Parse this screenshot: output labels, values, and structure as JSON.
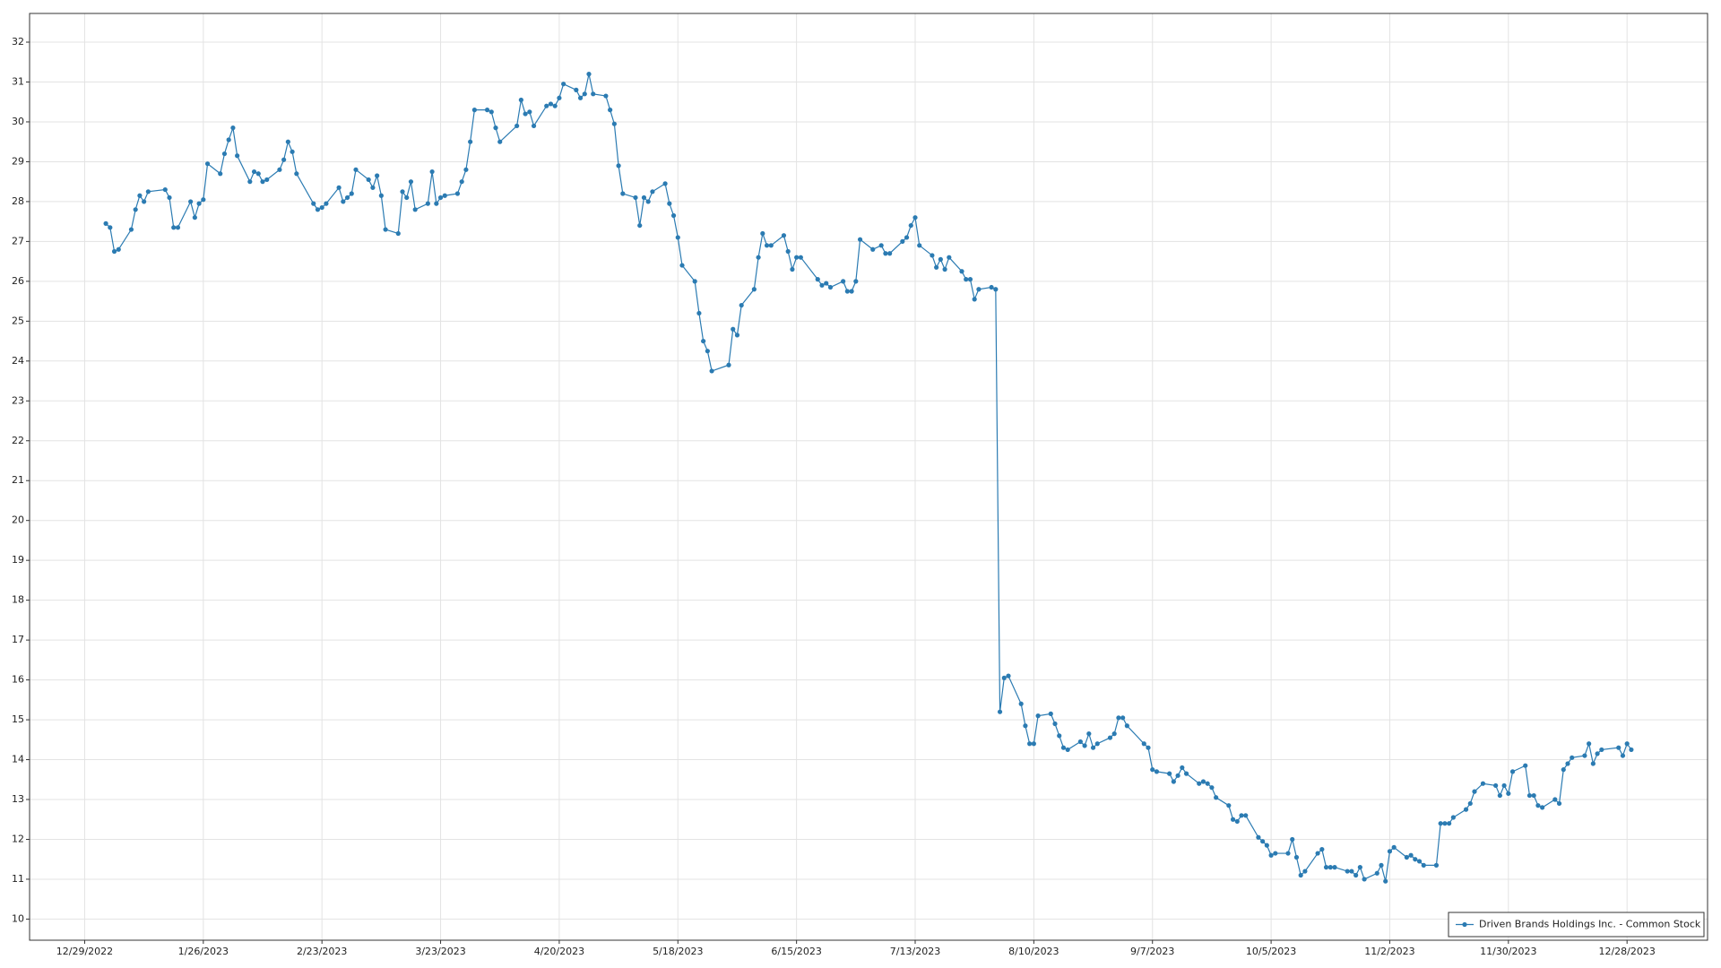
{
  "chart_data": {
    "type": "line",
    "x": [
      "2023-01-03",
      "2023-01-04",
      "2023-01-05",
      "2023-01-06",
      "2023-01-09",
      "2023-01-10",
      "2023-01-11",
      "2023-01-12",
      "2023-01-13",
      "2023-01-17",
      "2023-01-18",
      "2023-01-19",
      "2023-01-20",
      "2023-01-23",
      "2023-01-24",
      "2023-01-25",
      "2023-01-26",
      "2023-01-27",
      "2023-01-30",
      "2023-01-31",
      "2023-02-01",
      "2023-02-02",
      "2023-02-03",
      "2023-02-06",
      "2023-02-07",
      "2023-02-08",
      "2023-02-09",
      "2023-02-10",
      "2023-02-13",
      "2023-02-14",
      "2023-02-15",
      "2023-02-16",
      "2023-02-17",
      "2023-02-21",
      "2023-02-22",
      "2023-02-23",
      "2023-02-24",
      "2023-02-27",
      "2023-02-28",
      "2023-03-01",
      "2023-03-02",
      "2023-03-03",
      "2023-03-06",
      "2023-03-07",
      "2023-03-08",
      "2023-03-09",
      "2023-03-10",
      "2023-03-13",
      "2023-03-14",
      "2023-03-15",
      "2023-03-16",
      "2023-03-17",
      "2023-03-20",
      "2023-03-21",
      "2023-03-22",
      "2023-03-23",
      "2023-03-24",
      "2023-03-27",
      "2023-03-28",
      "2023-03-29",
      "2023-03-30",
      "2023-03-31",
      "2023-04-03",
      "2023-04-04",
      "2023-04-05",
      "2023-04-06",
      "2023-04-10",
      "2023-04-11",
      "2023-04-12",
      "2023-04-13",
      "2023-04-14",
      "2023-04-17",
      "2023-04-18",
      "2023-04-19",
      "2023-04-20",
      "2023-04-21",
      "2023-04-24",
      "2023-04-25",
      "2023-04-26",
      "2023-04-27",
      "2023-04-28",
      "2023-05-01",
      "2023-05-02",
      "2023-05-03",
      "2023-05-04",
      "2023-05-05",
      "2023-05-08",
      "2023-05-09",
      "2023-05-10",
      "2023-05-11",
      "2023-05-12",
      "2023-05-15",
      "2023-05-16",
      "2023-05-17",
      "2023-05-18",
      "2023-05-19",
      "2023-05-22",
      "2023-05-23",
      "2023-05-24",
      "2023-05-25",
      "2023-05-26",
      "2023-05-30",
      "2023-05-31",
      "2023-06-01",
      "2023-06-02",
      "2023-06-05",
      "2023-06-06",
      "2023-06-07",
      "2023-06-08",
      "2023-06-09",
      "2023-06-12",
      "2023-06-13",
      "2023-06-14",
      "2023-06-15",
      "2023-06-16",
      "2023-06-20",
      "2023-06-21",
      "2023-06-22",
      "2023-06-23",
      "2023-06-26",
      "2023-06-27",
      "2023-06-28",
      "2023-06-29",
      "2023-06-30",
      "2023-07-03",
      "2023-07-05",
      "2023-07-06",
      "2023-07-07",
      "2023-07-10",
      "2023-07-11",
      "2023-07-12",
      "2023-07-13",
      "2023-07-14",
      "2023-07-17",
      "2023-07-18",
      "2023-07-19",
      "2023-07-20",
      "2023-07-21",
      "2023-07-24",
      "2023-07-25",
      "2023-07-26",
      "2023-07-27",
      "2023-07-28",
      "2023-07-31",
      "2023-08-01",
      "2023-08-02",
      "2023-08-03",
      "2023-08-04",
      "2023-08-07",
      "2023-08-08",
      "2023-08-09",
      "2023-08-10",
      "2023-08-11",
      "2023-08-14",
      "2023-08-15",
      "2023-08-16",
      "2023-08-17",
      "2023-08-18",
      "2023-08-21",
      "2023-08-22",
      "2023-08-23",
      "2023-08-24",
      "2023-08-25",
      "2023-08-28",
      "2023-08-29",
      "2023-08-30",
      "2023-08-31",
      "2023-09-01",
      "2023-09-05",
      "2023-09-06",
      "2023-09-07",
      "2023-09-08",
      "2023-09-11",
      "2023-09-12",
      "2023-09-13",
      "2023-09-14",
      "2023-09-15",
      "2023-09-18",
      "2023-09-19",
      "2023-09-20",
      "2023-09-21",
      "2023-09-22",
      "2023-09-25",
      "2023-09-26",
      "2023-09-27",
      "2023-09-28",
      "2023-09-29",
      "2023-10-02",
      "2023-10-03",
      "2023-10-04",
      "2023-10-05",
      "2023-10-06",
      "2023-10-09",
      "2023-10-10",
      "2023-10-11",
      "2023-10-12",
      "2023-10-13",
      "2023-10-16",
      "2023-10-17",
      "2023-10-18",
      "2023-10-19",
      "2023-10-20",
      "2023-10-23",
      "2023-10-24",
      "2023-10-25",
      "2023-10-26",
      "2023-10-27",
      "2023-10-30",
      "2023-10-31",
      "2023-11-01",
      "2023-11-02",
      "2023-11-03",
      "2023-11-06",
      "2023-11-07",
      "2023-11-08",
      "2023-11-09",
      "2023-11-10",
      "2023-11-13",
      "2023-11-14",
      "2023-11-15",
      "2023-11-16",
      "2023-11-17",
      "2023-11-20",
      "2023-11-21",
      "2023-11-22",
      "2023-11-24",
      "2023-11-27",
      "2023-11-28",
      "2023-11-29",
      "2023-11-30",
      "2023-12-01",
      "2023-12-04",
      "2023-12-05",
      "2023-12-06",
      "2023-12-07",
      "2023-12-08",
      "2023-12-11",
      "2023-12-12",
      "2023-12-13",
      "2023-12-14",
      "2023-12-15",
      "2023-12-18",
      "2023-12-19",
      "2023-12-20",
      "2023-12-21",
      "2023-12-22",
      "2023-12-26",
      "2023-12-27",
      "2023-12-28",
      "2023-12-29"
    ],
    "series": [
      {
        "name": "Driven Brands Holdings Inc. - Common Stock",
        "color": "#2b7bb2",
        "values": [
          27.45,
          27.35,
          26.75,
          26.8,
          27.3,
          27.8,
          28.15,
          28.0,
          28.25,
          28.3,
          28.1,
          27.35,
          27.35,
          28.0,
          27.6,
          27.95,
          28.05,
          28.95,
          28.7,
          29.2,
          29.55,
          29.85,
          29.15,
          28.5,
          28.75,
          28.7,
          28.5,
          28.55,
          28.8,
          29.05,
          29.5,
          29.25,
          28.7,
          27.95,
          27.8,
          27.85,
          27.95,
          28.35,
          28.0,
          28.1,
          28.2,
          28.8,
          28.55,
          28.35,
          28.65,
          28.15,
          27.3,
          27.2,
          28.25,
          28.1,
          28.5,
          27.8,
          27.95,
          28.75,
          27.95,
          28.1,
          28.15,
          28.2,
          28.5,
          28.8,
          29.5,
          30.3,
          30.3,
          30.25,
          29.85,
          29.5,
          29.9,
          30.55,
          30.2,
          30.25,
          29.9,
          30.4,
          30.45,
          30.4,
          30.6,
          30.95,
          30.8,
          30.6,
          30.7,
          31.2,
          30.7,
          30.65,
          30.3,
          29.95,
          28.9,
          28.2,
          28.1,
          27.4,
          28.1,
          28.0,
          28.25,
          28.45,
          27.95,
          27.65,
          27.1,
          26.4,
          26.0,
          25.2,
          24.5,
          24.25,
          23.75,
          23.9,
          24.8,
          24.65,
          25.4,
          25.8,
          26.6,
          27.2,
          26.9,
          26.9,
          27.15,
          26.75,
          26.3,
          26.6,
          26.6,
          26.05,
          25.9,
          25.95,
          25.85,
          26.0,
          25.75,
          25.75,
          26.0,
          27.05,
          26.8,
          26.9,
          26.7,
          26.7,
          27.0,
          27.1,
          27.4,
          27.6,
          26.9,
          26.65,
          26.35,
          26.55,
          26.3,
          26.6,
          26.25,
          26.05,
          26.05,
          25.55,
          25.8,
          25.85,
          25.8,
          15.2,
          16.05,
          16.1,
          15.4,
          14.85,
          14.4,
          14.4,
          15.1,
          15.15,
          14.9,
          14.6,
          14.3,
          14.25,
          14.45,
          14.35,
          14.65,
          14.3,
          14.4,
          14.55,
          14.65,
          15.05,
          15.05,
          14.85,
          14.4,
          14.3,
          13.75,
          13.7,
          13.65,
          13.45,
          13.6,
          13.8,
          13.65,
          13.4,
          13.45,
          13.4,
          13.3,
          13.05,
          12.85,
          12.5,
          12.45,
          12.6,
          12.6,
          12.05,
          11.95,
          11.85,
          11.6,
          11.65,
          11.65,
          12.0,
          11.55,
          11.1,
          11.2,
          11.65,
          11.75,
          11.3,
          11.3,
          11.3,
          11.2,
          11.2,
          11.1,
          11.3,
          11.0,
          11.15,
          11.35,
          10.95,
          11.7,
          11.8,
          11.55,
          11.6,
          11.5,
          11.45,
          11.35,
          11.35,
          12.4,
          12.4,
          12.4,
          12.55,
          12.75,
          12.9,
          13.2,
          13.4,
          13.35,
          13.1,
          13.35,
          13.15,
          13.7,
          13.85,
          13.1,
          13.1,
          12.85,
          12.8,
          13.0,
          12.9,
          13.75,
          13.9,
          14.05,
          14.1,
          14.4,
          13.9,
          14.15,
          14.25,
          14.3,
          14.1,
          14.4,
          14.25
        ]
      }
    ],
    "xlim": [
      "2022-12-16",
      "2024-01-16"
    ],
    "xticks": [
      {
        "value": "2022-12-29",
        "label": "12/29/2022"
      },
      {
        "value": "2023-01-26",
        "label": "1/26/2023"
      },
      {
        "value": "2023-02-23",
        "label": "2/23/2023"
      },
      {
        "value": "2023-03-23",
        "label": "3/23/2023"
      },
      {
        "value": "2023-04-20",
        "label": "4/20/2023"
      },
      {
        "value": "2023-05-18",
        "label": "5/18/2023"
      },
      {
        "value": "2023-06-15",
        "label": "6/15/2023"
      },
      {
        "value": "2023-07-13",
        "label": "7/13/2023"
      },
      {
        "value": "2023-08-10",
        "label": "8/10/2023"
      },
      {
        "value": "2023-09-07",
        "label": "9/7/2023"
      },
      {
        "value": "2023-10-05",
        "label": "10/5/2023"
      },
      {
        "value": "2023-11-02",
        "label": "11/2/2023"
      },
      {
        "value": "2023-11-30",
        "label": "11/30/2023"
      },
      {
        "value": "2023-12-28",
        "label": "12/28/2023"
      }
    ],
    "ylim": [
      9.47,
      32.72
    ],
    "yticks": [
      10,
      11,
      12,
      13,
      14,
      15,
      16,
      17,
      18,
      19,
      20,
      21,
      22,
      23,
      24,
      25,
      26,
      27,
      28,
      29,
      30,
      31,
      32
    ],
    "grid": true,
    "legend": "lower right"
  }
}
